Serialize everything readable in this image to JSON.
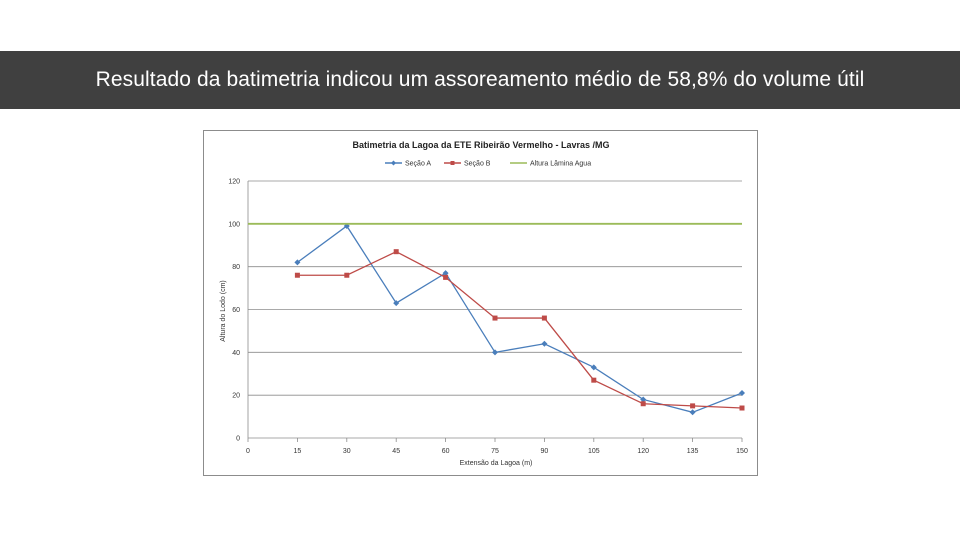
{
  "slide": {
    "title": "Resultado da batimetria indicou um assoreamento médio de 58,8% do volume útil"
  },
  "chart_data": {
    "type": "line",
    "title": "Batimetria da Lagoa da ETE Ribeirão Vermelho - Lavras /MG",
    "xlabel": "Extensão da Lagoa (m)",
    "ylabel": "Altura do Lodo (cm)",
    "x_ticks": [
      "0",
      "15",
      "30",
      "45",
      "60",
      "75",
      "90",
      "105",
      "120",
      "135",
      "150"
    ],
    "y_ticks": [
      "0",
      "20",
      "40",
      "60",
      "80",
      "100",
      "120"
    ],
    "xlim": [
      0,
      150
    ],
    "ylim": [
      0,
      120
    ],
    "grid": "horizontal",
    "legend_position": "top",
    "series": [
      {
        "name": "Seção A",
        "color": "#4a7ebb",
        "marker": "diamond",
        "x": [
          15,
          30,
          45,
          60,
          75,
          90,
          105,
          120,
          135,
          150
        ],
        "y": [
          82,
          99,
          63,
          77,
          40,
          44,
          33,
          18,
          12,
          21
        ]
      },
      {
        "name": "Seção B",
        "color": "#be4b48",
        "marker": "square",
        "x": [
          15,
          30,
          45,
          60,
          75,
          90,
          105,
          120,
          135,
          150
        ],
        "y": [
          76,
          76,
          87,
          75,
          56,
          56,
          27,
          16,
          15,
          14
        ]
      },
      {
        "name": "Altura Lâmina Agua",
        "color": "#9bbb59",
        "marker": "none",
        "x": [
          0,
          150
        ],
        "y": [
          100,
          100
        ]
      }
    ]
  }
}
